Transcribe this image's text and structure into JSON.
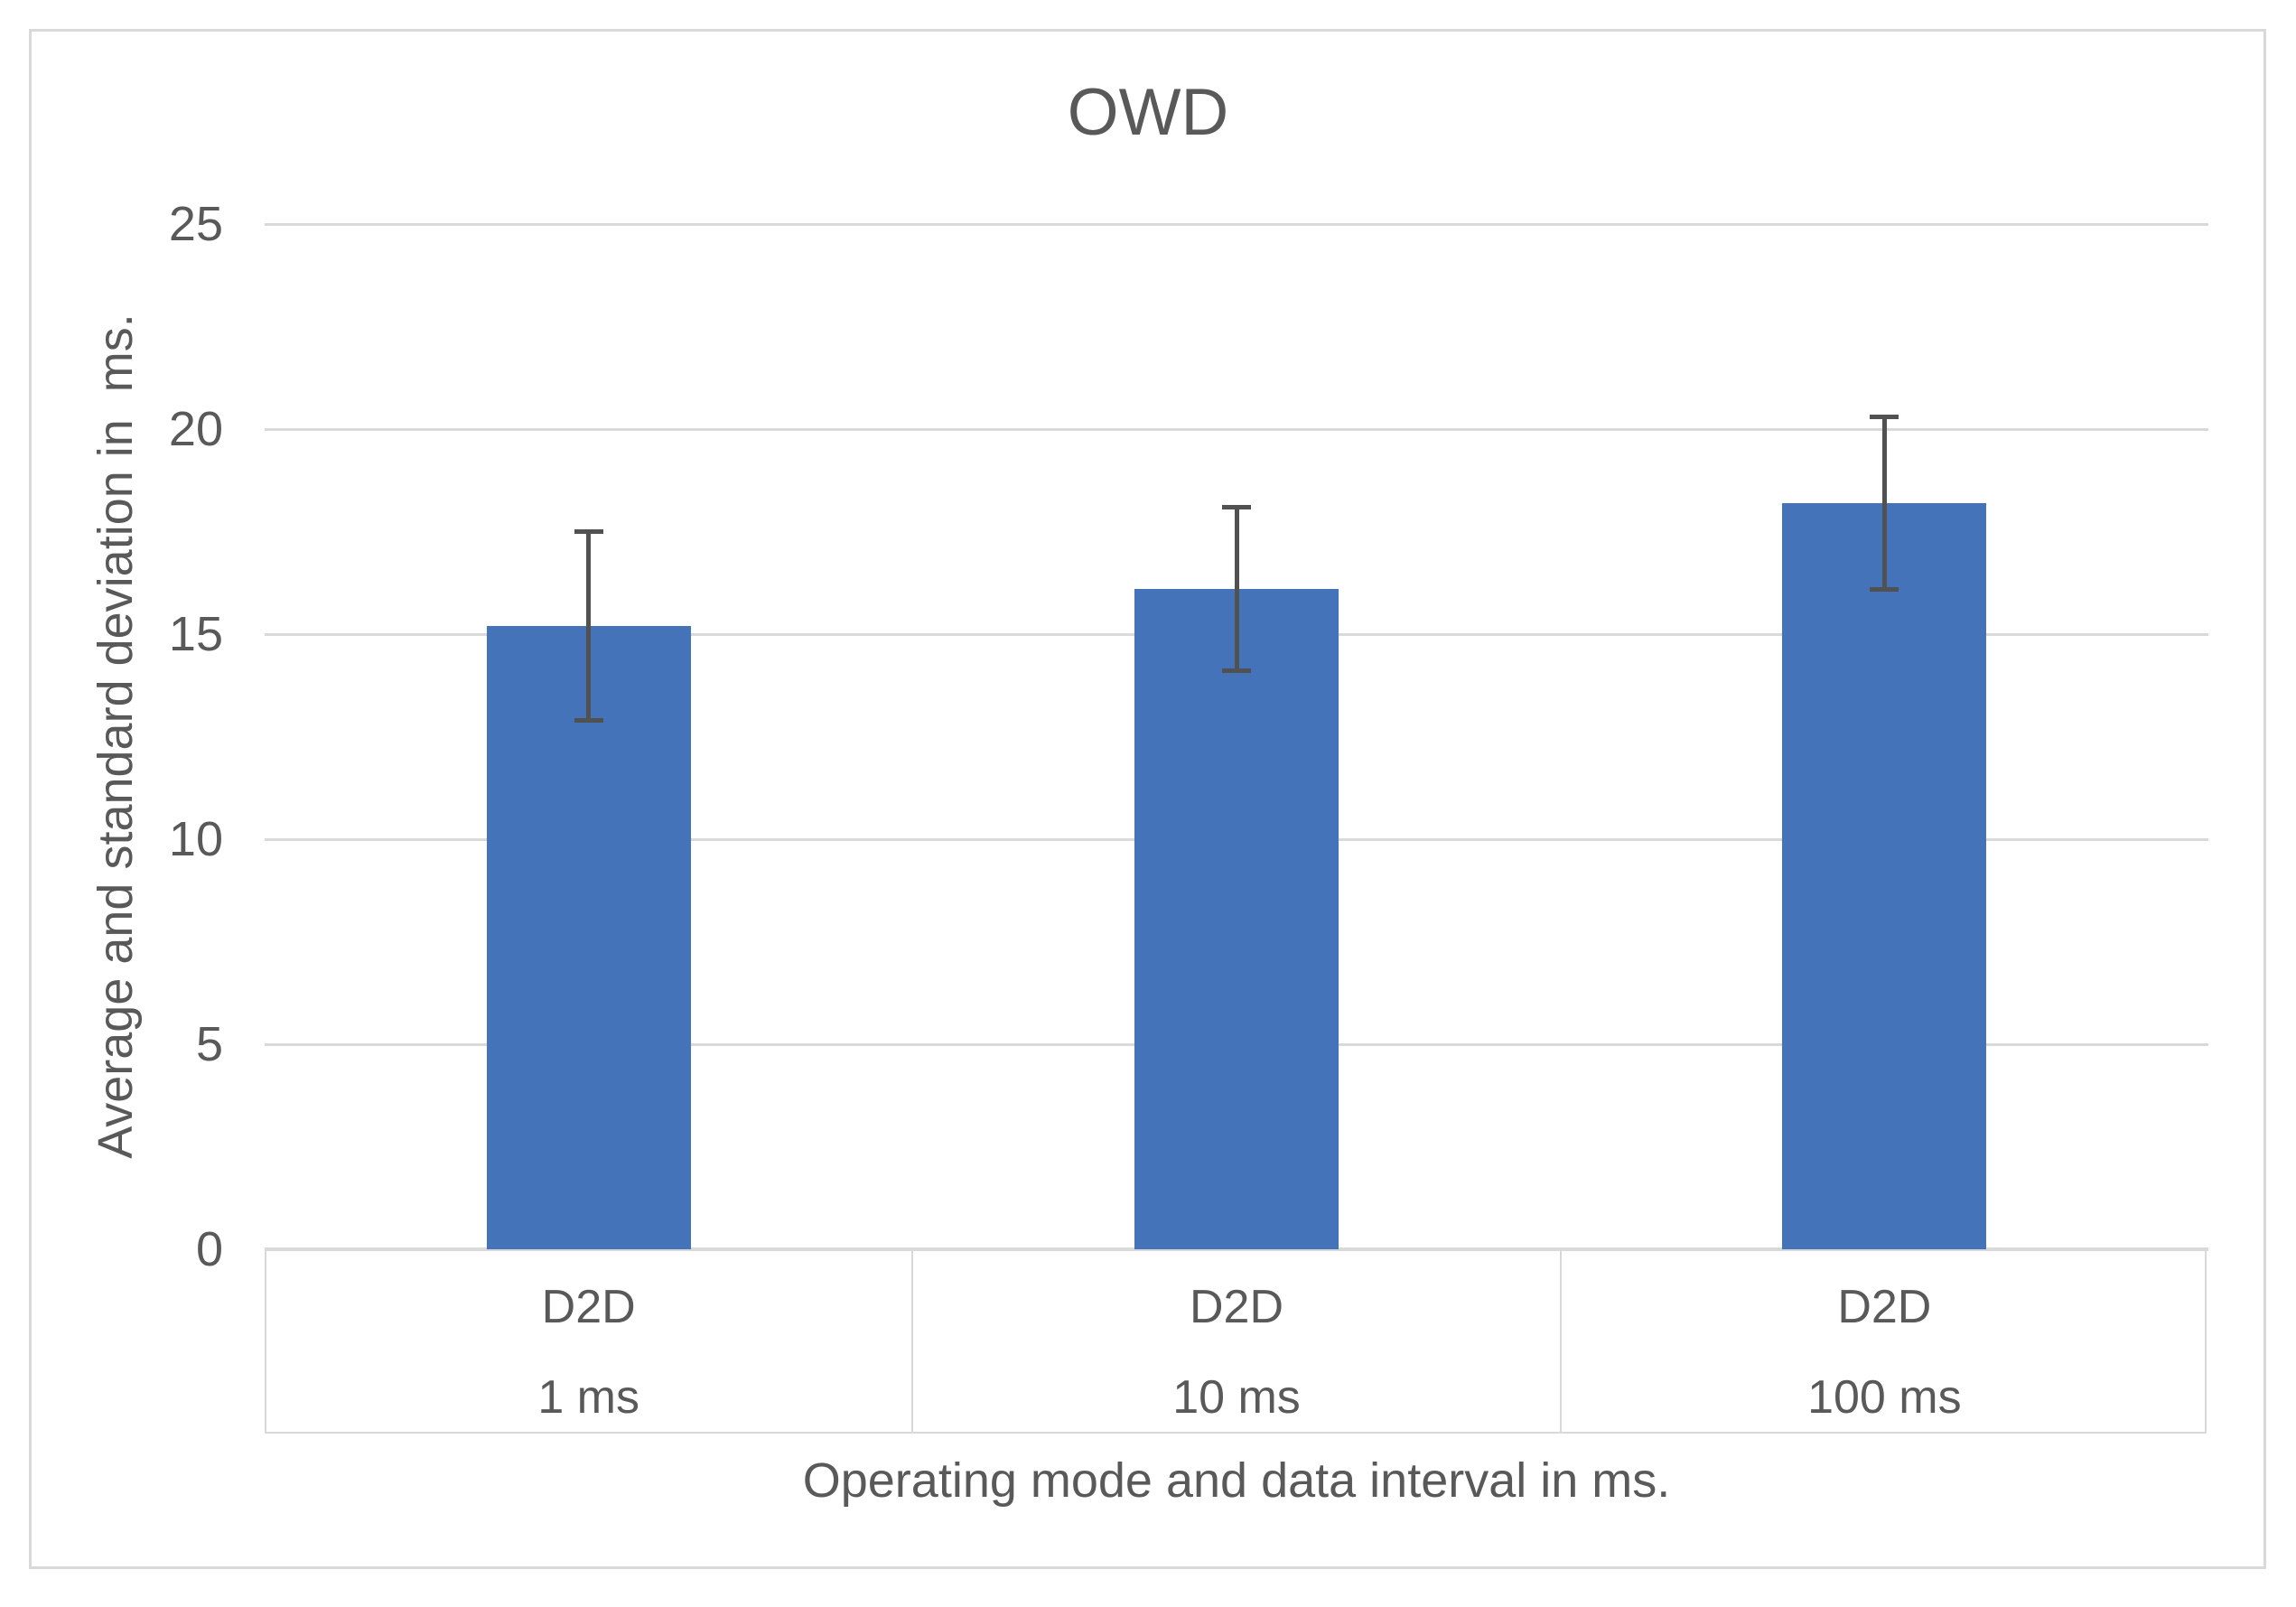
{
  "chart_data": {
    "type": "bar",
    "title": "OWD",
    "ylabel": "Average and standard deviation in  ms.",
    "xlabel": "Operating mode and data interval in ms.",
    "categories": [
      {
        "mode": "D2D",
        "interval": "1 ms"
      },
      {
        "mode": "D2D",
        "interval": "10 ms"
      },
      {
        "mode": "D2D",
        "interval": "100 ms"
      }
    ],
    "series": [
      {
        "name": "OWD",
        "values": [
          15.2,
          16.1,
          18.2
        ],
        "error_bars": [
          2.3,
          2.0,
          2.1
        ]
      }
    ],
    "ylim": [
      0,
      25
    ],
    "yticks": [
      0,
      5,
      10,
      15,
      20,
      25
    ],
    "grid": true,
    "legend": false,
    "colors": {
      "bar": "#4573ba",
      "error_bar": "#515151",
      "gridline": "#d9d9d9",
      "axis_line": "#d9d9d9",
      "text": "#595959",
      "border": "#d9d9d9",
      "background": "#ffffff"
    }
  }
}
